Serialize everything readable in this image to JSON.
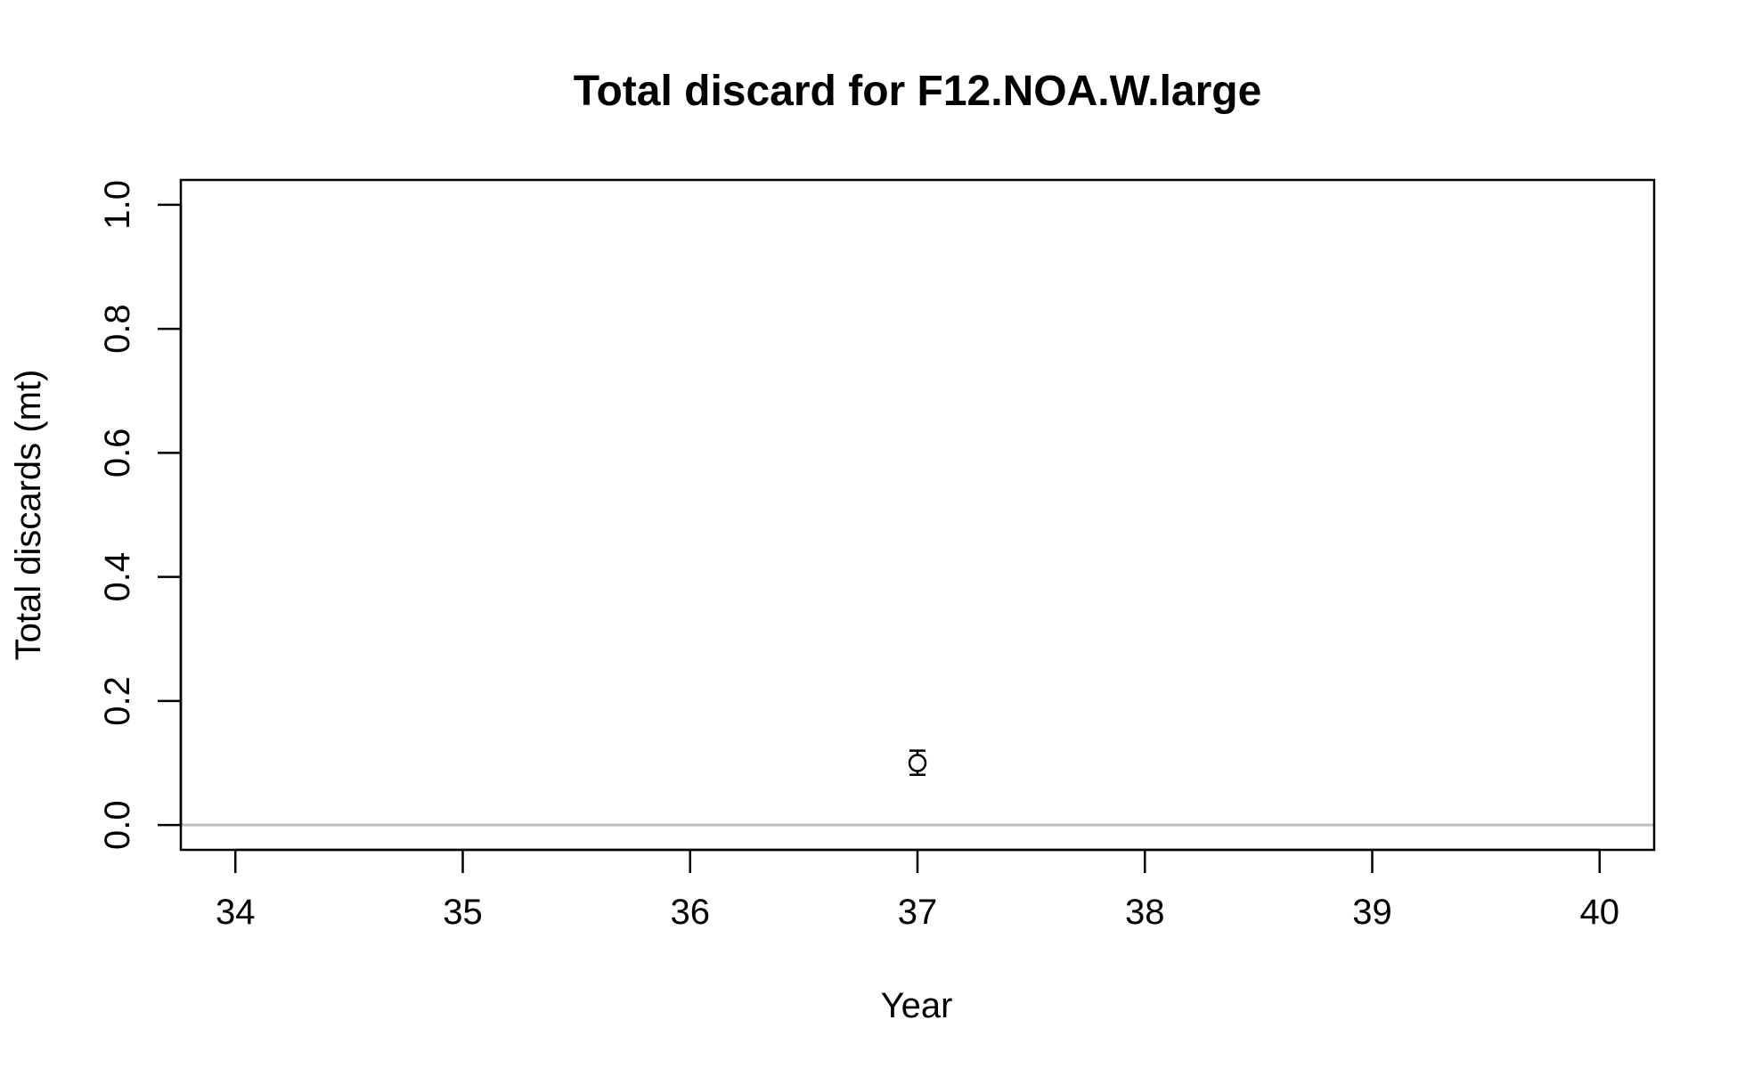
{
  "chart_data": {
    "type": "scatter",
    "title": "Total discard for F12.NOA.W.large",
    "xlabel": "Year",
    "ylabel": "Total discards (mt)",
    "xlim": [
      33.76,
      40.24
    ],
    "ylim": [
      -0.04,
      1.04
    ],
    "xticks": [
      {
        "value": 34,
        "label": "34"
      },
      {
        "value": 35,
        "label": "35"
      },
      {
        "value": 36,
        "label": "36"
      },
      {
        "value": 37,
        "label": "37"
      },
      {
        "value": 38,
        "label": "38"
      },
      {
        "value": 39,
        "label": "39"
      },
      {
        "value": 40,
        "label": "40"
      }
    ],
    "yticks": [
      {
        "value": 0.0,
        "label": "0.0"
      },
      {
        "value": 0.2,
        "label": "0.2"
      },
      {
        "value": 0.4,
        "label": "0.4"
      },
      {
        "value": 0.6,
        "label": "0.6"
      },
      {
        "value": 0.8,
        "label": "0.8"
      },
      {
        "value": 1.0,
        "label": "1.0"
      }
    ],
    "points": [
      {
        "x": 37,
        "y": 0.1,
        "lower": 0.081,
        "upper": 0.12
      }
    ],
    "reference_line": {
      "y": 0,
      "color": "#bebebe"
    },
    "grid": false,
    "legend": "none",
    "marker": "open-circle",
    "colors": {
      "points": "#000000",
      "axis": "#000000",
      "reference": "#bebebe"
    }
  }
}
